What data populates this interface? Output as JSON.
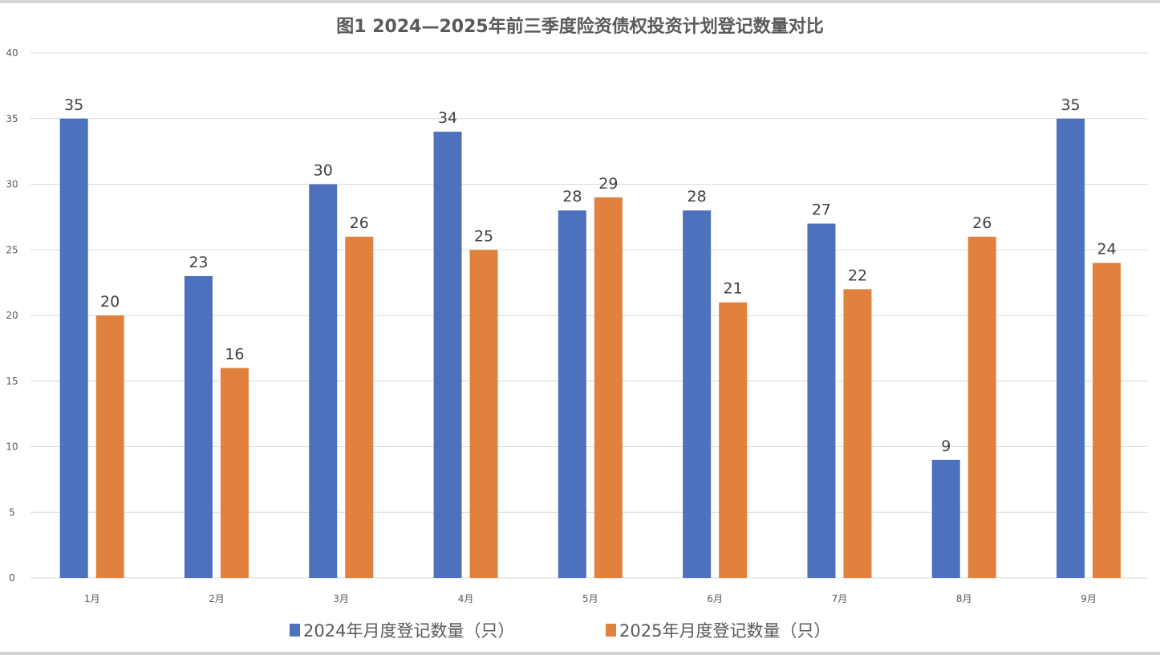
{
  "chart_data": {
    "type": "bar",
    "title": "图1 2024—2025年前三季度险资债权投资计划登记数量对比",
    "categories": [
      "1月",
      "2月",
      "3月",
      "4月",
      "5月",
      "6月",
      "7月",
      "8月",
      "9月"
    ],
    "series": [
      {
        "name": "2024年月度登记数量（只）",
        "color": "#4E71BE",
        "values": [
          35,
          23,
          30,
          34,
          28,
          28,
          27,
          9,
          35
        ]
      },
      {
        "name": "2025年月度登记数量（只）",
        "color": "#E0823D",
        "values": [
          20,
          16,
          26,
          25,
          29,
          21,
          22,
          26,
          24
        ]
      }
    ],
    "xlabel": "",
    "ylabel": "",
    "ylim": [
      0,
      40
    ],
    "yticks": [
      0,
      5,
      10,
      15,
      20,
      25,
      30,
      35,
      40
    ],
    "grid": true,
    "legend_position": "bottom"
  }
}
